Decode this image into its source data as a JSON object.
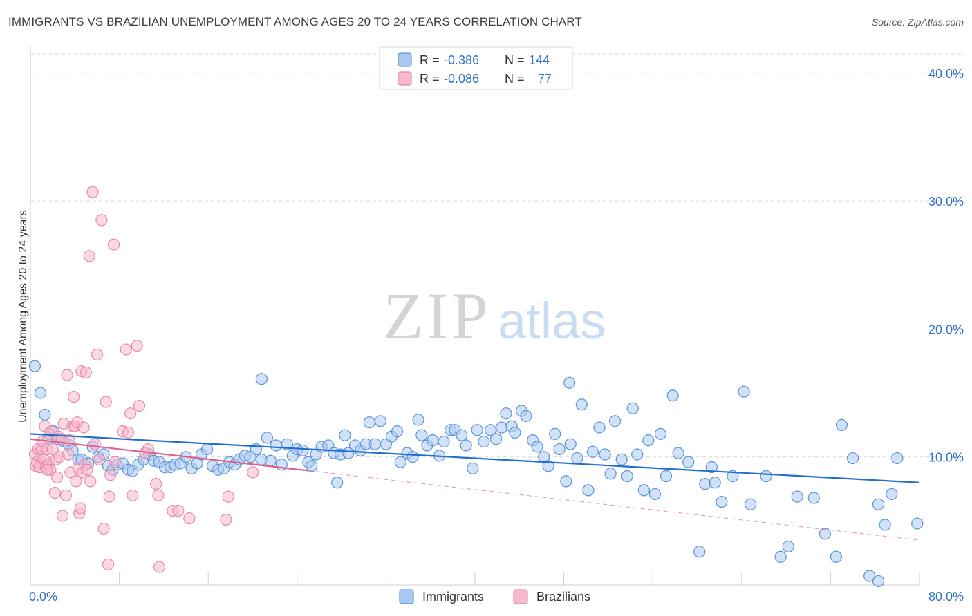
{
  "title": "IMMIGRANTS VS BRAZILIAN UNEMPLOYMENT AMONG AGES 20 TO 24 YEARS CORRELATION CHART",
  "source": "Source: ZipAtlas.com",
  "watermark": {
    "zip": "ZIP",
    "atlas": "atlas"
  },
  "colors": {
    "immigrants_fill": "#a9c9f2",
    "immigrants_stroke": "#5b93d8",
    "immigrants_line": "#1f6fd0",
    "brazilians_fill": "#f6b8cd",
    "brazilians_stroke": "#e889a8",
    "brazilians_line": "#e0608a",
    "value_text": "#2f6fcf",
    "grid": "#d9d9d9"
  },
  "legend_top": [
    {
      "r_label": "R =",
      "r_value": "-0.386",
      "n_label": "N =",
      "n_value": "144"
    },
    {
      "r_label": "R =",
      "r_value": "-0.086",
      "n_label": "N =",
      "n_value": "77"
    }
  ],
  "chart_data": {
    "type": "scatter",
    "xlabel": "",
    "ylabel": "Unemployment Among Ages 20 to 24 years",
    "xlim": [
      0,
      80
    ],
    "ylim": [
      0,
      41.5
    ],
    "x_tick_labels": [
      {
        "x": 0,
        "label": "0.0%"
      },
      {
        "x": 80,
        "label": "80.0%"
      }
    ],
    "y_tick_labels": [
      {
        "y": 10,
        "label": "10.0%"
      },
      {
        "y": 20,
        "label": "20.0%"
      },
      {
        "y": 30,
        "label": "30.0%"
      },
      {
        "y": 40,
        "label": "40.0%"
      }
    ],
    "x_minor_ticks": [
      8,
      16,
      24,
      32,
      40,
      48,
      56,
      64,
      72,
      80
    ],
    "grid": true,
    "legend_position": "bottom-center",
    "series": [
      {
        "name": "Immigrants",
        "trend": {
          "x": [
            0,
            80
          ],
          "y": [
            11.8,
            8.0
          ],
          "solid_to": 80
        },
        "points": [
          [
            0.4,
            17.1
          ],
          [
            0.9,
            15.0
          ],
          [
            1.3,
            13.3
          ],
          [
            1.6,
            11.5
          ],
          [
            2.1,
            12.0
          ],
          [
            2.4,
            11.4
          ],
          [
            3.0,
            11.2
          ],
          [
            3.4,
            11.0
          ],
          [
            3.8,
            10.5
          ],
          [
            4.3,
            9.8
          ],
          [
            4.6,
            9.8
          ],
          [
            5.2,
            9.5
          ],
          [
            5.6,
            10.8
          ],
          [
            6.1,
            10.0
          ],
          [
            6.6,
            10.2
          ],
          [
            7.0,
            9.3
          ],
          [
            7.4,
            9.0
          ],
          [
            7.8,
            9.4
          ],
          [
            8.3,
            9.5
          ],
          [
            8.8,
            9.0
          ],
          [
            9.2,
            8.9
          ],
          [
            9.7,
            9.4
          ],
          [
            10.2,
            9.8
          ],
          [
            10.7,
            10.2
          ],
          [
            11.1,
            9.7
          ],
          [
            11.6,
            9.6
          ],
          [
            12.1,
            9.2
          ],
          [
            12.6,
            9.2
          ],
          [
            13.0,
            9.4
          ],
          [
            13.5,
            9.5
          ],
          [
            14.0,
            10.0
          ],
          [
            14.5,
            9.1
          ],
          [
            15.0,
            9.5
          ],
          [
            15.4,
            10.2
          ],
          [
            15.9,
            10.6
          ],
          [
            16.4,
            9.3
          ],
          [
            16.9,
            9.0
          ],
          [
            17.4,
            9.1
          ],
          [
            17.9,
            9.6
          ],
          [
            18.4,
            9.4
          ],
          [
            18.8,
            9.8
          ],
          [
            19.3,
            10.1
          ],
          [
            19.8,
            10.0
          ],
          [
            20.3,
            10.6
          ],
          [
            20.8,
            9.8
          ],
          [
            21.3,
            11.5
          ],
          [
            21.6,
            9.7
          ],
          [
            22.1,
            10.9
          ],
          [
            22.6,
            9.4
          ],
          [
            23.1,
            11.0
          ],
          [
            23.6,
            10.1
          ],
          [
            24.0,
            10.6
          ],
          [
            24.5,
            10.5
          ],
          [
            25.0,
            9.6
          ],
          [
            25.3,
            9.3
          ],
          [
            25.7,
            10.2
          ],
          [
            26.2,
            10.8
          ],
          [
            26.8,
            10.9
          ],
          [
            27.3,
            10.3
          ],
          [
            27.9,
            10.2
          ],
          [
            28.3,
            11.7
          ],
          [
            28.6,
            10.3
          ],
          [
            29.2,
            10.9
          ],
          [
            29.7,
            10.5
          ],
          [
            30.2,
            11.0
          ],
          [
            30.5,
            12.7
          ],
          [
            31.0,
            11.0
          ],
          [
            31.5,
            12.8
          ],
          [
            32.0,
            11.0
          ],
          [
            32.5,
            11.6
          ],
          [
            33.0,
            12.0
          ],
          [
            33.3,
            9.6
          ],
          [
            33.9,
            10.3
          ],
          [
            34.4,
            10.0
          ],
          [
            34.9,
            12.9
          ],
          [
            35.2,
            11.7
          ],
          [
            35.7,
            10.9
          ],
          [
            36.2,
            11.3
          ],
          [
            36.8,
            10.1
          ],
          [
            37.2,
            11.2
          ],
          [
            37.8,
            12.1
          ],
          [
            38.2,
            12.1
          ],
          [
            38.8,
            11.7
          ],
          [
            39.2,
            10.9
          ],
          [
            39.8,
            9.1
          ],
          [
            40.2,
            12.1
          ],
          [
            40.8,
            11.2
          ],
          [
            41.4,
            12.1
          ],
          [
            41.9,
            11.4
          ],
          [
            42.4,
            12.3
          ],
          [
            42.8,
            13.4
          ],
          [
            43.3,
            12.4
          ],
          [
            43.6,
            11.9
          ],
          [
            44.2,
            13.6
          ],
          [
            44.6,
            13.2
          ],
          [
            45.2,
            11.3
          ],
          [
            45.6,
            10.8
          ],
          [
            46.2,
            10.0
          ],
          [
            46.6,
            9.3
          ],
          [
            47.2,
            11.8
          ],
          [
            47.6,
            10.6
          ],
          [
            48.2,
            8.1
          ],
          [
            48.6,
            11.0
          ],
          [
            49.2,
            9.9
          ],
          [
            49.6,
            14.1
          ],
          [
            50.2,
            7.4
          ],
          [
            50.6,
            10.4
          ],
          [
            51.2,
            12.3
          ],
          [
            51.7,
            10.2
          ],
          [
            52.2,
            8.7
          ],
          [
            52.6,
            12.8
          ],
          [
            53.2,
            9.8
          ],
          [
            53.7,
            8.5
          ],
          [
            54.2,
            13.8
          ],
          [
            54.6,
            10.2
          ],
          [
            55.2,
            7.4
          ],
          [
            55.6,
            11.3
          ],
          [
            56.2,
            7.1
          ],
          [
            56.7,
            11.8
          ],
          [
            57.2,
            8.5
          ],
          [
            57.8,
            14.8
          ],
          [
            58.3,
            10.3
          ],
          [
            59.2,
            9.6
          ],
          [
            60.2,
            2.6
          ],
          [
            60.7,
            7.9
          ],
          [
            61.3,
            9.2
          ],
          [
            61.6,
            8.0
          ],
          [
            62.2,
            6.5
          ],
          [
            63.2,
            8.5
          ],
          [
            64.2,
            15.1
          ],
          [
            64.8,
            6.3
          ],
          [
            66.2,
            8.5
          ],
          [
            67.5,
            2.2
          ],
          [
            68.2,
            3.0
          ],
          [
            69.0,
            6.9
          ],
          [
            70.5,
            6.8
          ],
          [
            71.5,
            4.0
          ],
          [
            72.5,
            2.2
          ],
          [
            73.0,
            12.5
          ],
          [
            74.0,
            9.9
          ],
          [
            75.5,
            0.7
          ],
          [
            76.3,
            6.3
          ],
          [
            76.9,
            4.7
          ],
          [
            77.5,
            7.1
          ],
          [
            78.0,
            9.9
          ],
          [
            79.8,
            4.8
          ],
          [
            76.3,
            0.3
          ],
          [
            48.5,
            15.8
          ],
          [
            20.8,
            16.1
          ],
          [
            27.6,
            8.0
          ]
        ]
      },
      {
        "name": "Brazilians",
        "trend": {
          "x": [
            0,
            80
          ],
          "y": [
            11.4,
            3.5
          ],
          "solid_to": 25
        },
        "points": [
          [
            0.4,
            10.2
          ],
          [
            0.5,
            9.3
          ],
          [
            0.6,
            9.6
          ],
          [
            0.7,
            10.6
          ],
          [
            0.8,
            9.2
          ],
          [
            0.9,
            10.0
          ],
          [
            1.0,
            10.6
          ],
          [
            1.1,
            11.2
          ],
          [
            1.2,
            9.8
          ],
          [
            1.3,
            12.4
          ],
          [
            1.4,
            9.2
          ],
          [
            1.5,
            10.6
          ],
          [
            1.6,
            9.4
          ],
          [
            1.7,
            11.8
          ],
          [
            1.8,
            9.0
          ],
          [
            1.9,
            12.0
          ],
          [
            2.0,
            10.6
          ],
          [
            2.2,
            7.2
          ],
          [
            2.3,
            9.8
          ],
          [
            2.4,
            8.4
          ],
          [
            2.5,
            11.6
          ],
          [
            2.6,
            10.0
          ],
          [
            2.8,
            11.4
          ],
          [
            2.9,
            5.4
          ],
          [
            3.0,
            12.6
          ],
          [
            3.2,
            7.0
          ],
          [
            3.3,
            16.4
          ],
          [
            3.4,
            10.2
          ],
          [
            3.5,
            11.3
          ],
          [
            3.6,
            8.8
          ],
          [
            3.8,
            12.4
          ],
          [
            3.9,
            14.7
          ],
          [
            4.0,
            12.4
          ],
          [
            4.1,
            8.1
          ],
          [
            4.2,
            12.7
          ],
          [
            4.3,
            9.1
          ],
          [
            4.4,
            5.6
          ],
          [
            4.5,
            6.0
          ],
          [
            4.6,
            16.7
          ],
          [
            4.7,
            8.8
          ],
          [
            4.8,
            12.3
          ],
          [
            4.9,
            9.4
          ],
          [
            5.0,
            16.6
          ],
          [
            5.1,
            9.0
          ],
          [
            5.3,
            25.7
          ],
          [
            5.4,
            8.1
          ],
          [
            5.6,
            30.7
          ],
          [
            5.8,
            11.0
          ],
          [
            6.0,
            18.0
          ],
          [
            6.2,
            9.8
          ],
          [
            6.4,
            28.5
          ],
          [
            6.6,
            4.4
          ],
          [
            6.8,
            14.3
          ],
          [
            7.0,
            1.6
          ],
          [
            7.1,
            6.9
          ],
          [
            7.2,
            8.6
          ],
          [
            7.5,
            26.6
          ],
          [
            7.6,
            9.6
          ],
          [
            8.3,
            12.0
          ],
          [
            8.6,
            18.4
          ],
          [
            8.8,
            11.9
          ],
          [
            9.0,
            13.4
          ],
          [
            9.2,
            7.0
          ],
          [
            9.6,
            18.7
          ],
          [
            9.8,
            14.0
          ],
          [
            10.3,
            10.3
          ],
          [
            10.6,
            10.6
          ],
          [
            11.3,
            7.9
          ],
          [
            11.6,
            1.4
          ],
          [
            11.5,
            7.0
          ],
          [
            12.8,
            5.8
          ],
          [
            13.3,
            5.8
          ],
          [
            14.3,
            5.2
          ],
          [
            17.6,
            5.1
          ],
          [
            17.8,
            6.9
          ],
          [
            20.0,
            8.8
          ],
          [
            1.5,
            9.0
          ]
        ]
      }
    ]
  },
  "legend_bottom": [
    "Immigrants",
    "Brazilians"
  ]
}
